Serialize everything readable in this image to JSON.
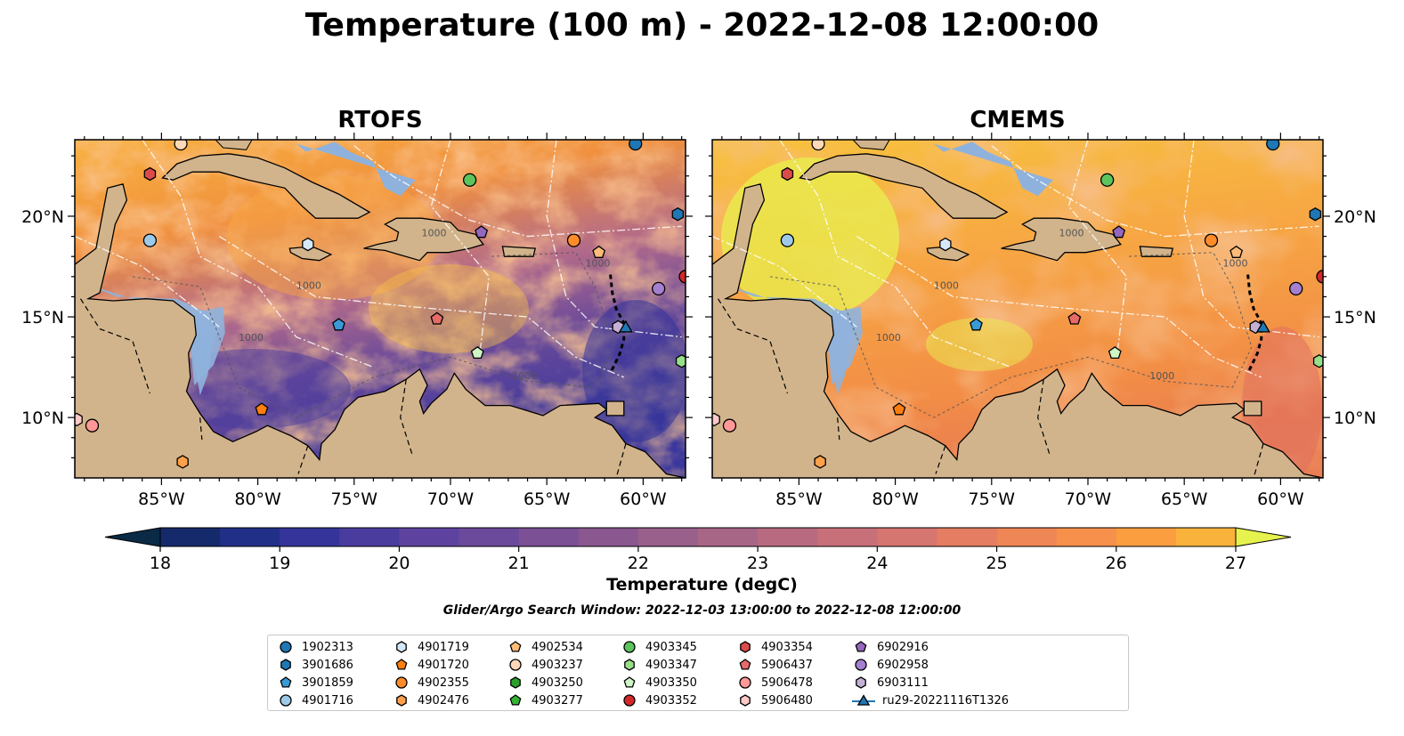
{
  "title": "Temperature (100 m) - 2022-12-08 12:00:00",
  "panels": [
    {
      "title": "RTOFS",
      "style": "rtofs"
    },
    {
      "title": "CMEMS",
      "style": "cmems"
    }
  ],
  "map_extent": {
    "lon": [
      -89.5,
      -57.8
    ],
    "lat": [
      7.0,
      23.8
    ]
  },
  "lon_ticks": [
    "85°W",
    "80°W",
    "75°W",
    "70°W",
    "65°W",
    "60°W"
  ],
  "lon_tick_values": [
    -85,
    -80,
    -75,
    -70,
    -65,
    -60
  ],
  "lat_ticks": [
    "10°N",
    "15°N",
    "20°N"
  ],
  "lat_tick_values": [
    10,
    15,
    20
  ],
  "contour_labels": [
    "1000",
    "1000",
    "1000",
    "1000",
    "1000"
  ],
  "colorbar": {
    "label": "Temperature (degC)",
    "ticks": [
      "18",
      "19",
      "20",
      "21",
      "22",
      "23",
      "24",
      "25",
      "26",
      "27"
    ],
    "range": [
      18,
      27
    ],
    "step": 0.5,
    "colors": [
      "#0a2a45",
      "#142a6b",
      "#222f88",
      "#35349a",
      "#4a3c9e",
      "#5d439f",
      "#6c4a9b",
      "#7b5095",
      "#8a578f",
      "#99608b",
      "#a86686",
      "#b86b80",
      "#c8707a",
      "#d67670",
      "#e47d62",
      "#ef8656",
      "#f6904a",
      "#fa9e40",
      "#f9b23c",
      "#f4c83c"
    ]
  },
  "search_window": "Glider/Argo Search Window: 2022-12-03 13:00:00 to 2022-12-08 12:00:00",
  "legend": [
    {
      "id": "1902313",
      "color": "#1f77b4",
      "shape": "circle"
    },
    {
      "id": "3901686",
      "color": "#1f77b4",
      "shape": "hexagon"
    },
    {
      "id": "3901859",
      "color": "#3a9ad6",
      "shape": "pentagon"
    },
    {
      "id": "4901716",
      "color": "#9ecae9",
      "shape": "circle"
    },
    {
      "id": "4901719",
      "color": "#d4e8f8",
      "shape": "hexagon"
    },
    {
      "id": "4901720",
      "color": "#ff7f0e",
      "shape": "pentagon"
    },
    {
      "id": "4902355",
      "color": "#ff8c28",
      "shape": "circle"
    },
    {
      "id": "4902476",
      "color": "#ffa04a",
      "shape": "hexagon"
    },
    {
      "id": "4902534",
      "color": "#ffbb78",
      "shape": "pentagon"
    },
    {
      "id": "4903237",
      "color": "#ffd8b8",
      "shape": "circle"
    },
    {
      "id": "4903250",
      "color": "#2ca02c",
      "shape": "hexagon"
    },
    {
      "id": "4903277",
      "color": "#35b335",
      "shape": "pentagon"
    },
    {
      "id": "4903345",
      "color": "#5cc45c",
      "shape": "circle"
    },
    {
      "id": "4903347",
      "color": "#98df8a",
      "shape": "hexagon"
    },
    {
      "id": "4903350",
      "color": "#cff4c6",
      "shape": "pentagon"
    },
    {
      "id": "4903352",
      "color": "#d62728",
      "shape": "circle"
    },
    {
      "id": "4903354",
      "color": "#dc4b4b",
      "shape": "hexagon"
    },
    {
      "id": "5906437",
      "color": "#e66a6a",
      "shape": "pentagon"
    },
    {
      "id": "5906478",
      "color": "#ff9896",
      "shape": "circle"
    },
    {
      "id": "5906480",
      "color": "#ffc9c8",
      "shape": "hexagon"
    },
    {
      "id": "6902916",
      "color": "#9467bd",
      "shape": "pentagon"
    },
    {
      "id": "6902958",
      "color": "#a57fd0",
      "shape": "circle"
    },
    {
      "id": "6903111",
      "color": "#c5b0d5",
      "shape": "hexagon"
    },
    {
      "id": "ru29-20221116T1326",
      "color": "#1f77b4",
      "shape": "triangle"
    }
  ],
  "floats": [
    {
      "id": "1902313",
      "lon": -60.4,
      "lat": 23.6
    },
    {
      "id": "3901686",
      "lon": -58.2,
      "lat": 20.1
    },
    {
      "id": "3901859",
      "lon": -75.8,
      "lat": 14.6
    },
    {
      "id": "4901716",
      "lon": -85.6,
      "lat": 18.8
    },
    {
      "id": "4901719",
      "lon": -77.4,
      "lat": 18.6
    },
    {
      "id": "4901720",
      "lon": -79.8,
      "lat": 10.4
    },
    {
      "id": "4902355",
      "lon": -63.6,
      "lat": 18.8
    },
    {
      "id": "4902476",
      "lon": -83.9,
      "lat": 7.8
    },
    {
      "id": "4902534",
      "lon": -62.3,
      "lat": 18.2
    },
    {
      "id": "4903237",
      "lon": -84.0,
      "lat": 23.6
    },
    {
      "id": "4903345",
      "lon": -69.0,
      "lat": 21.8
    },
    {
      "id": "4903347",
      "lon": -58.0,
      "lat": 12.8
    },
    {
      "id": "4903350",
      "lon": -68.6,
      "lat": 13.2
    },
    {
      "id": "4903352",
      "lon": -57.8,
      "lat": 17.0
    },
    {
      "id": "5906437",
      "lon": -70.7,
      "lat": 14.9
    },
    {
      "id": "5906478",
      "lon": -88.6,
      "lat": 9.6
    },
    {
      "id": "5906480",
      "lon": -89.4,
      "lat": 9.9
    },
    {
      "id": "4903354",
      "lon": -85.6,
      "lat": 22.1
    },
    {
      "id": "6902916",
      "lon": -68.4,
      "lat": 19.2
    },
    {
      "id": "6902958",
      "lon": -59.2,
      "lat": 16.4
    },
    {
      "id": "6903111",
      "lon": -61.3,
      "lat": 14.5
    },
    {
      "id": "ru29-20221116T1326",
      "lon": -60.9,
      "lat": 14.5
    }
  ]
}
